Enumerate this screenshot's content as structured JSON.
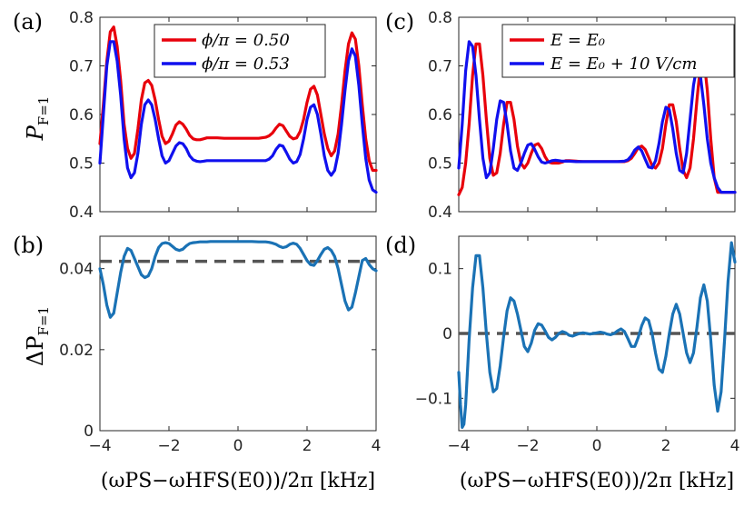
{
  "colors": {
    "red": "#e8000b",
    "blue": "#1010ee",
    "teal": "#1a72b5",
    "dash": "#555555"
  },
  "x_axis_label": "(ωₚₛ−ωₕₒₛ(E₀))/2π [kHz]",
  "x_axis_label_plain": "(ωPS−ωHFS(E0))/2π [kHz]",
  "chart_data": [
    {
      "id": "a",
      "panel_label": "(a)",
      "type": "line",
      "ylabel": "P_{F=1}",
      "ylabel_main": "P",
      "ylabel_sub": "F=1",
      "xlim": [
        -4,
        4
      ],
      "ylim": [
        0.4,
        0.8
      ],
      "yticks": [
        "0.4",
        "0.5",
        "0.6",
        "0.7",
        "0.8"
      ],
      "ytick_values": [
        0.4,
        0.5,
        0.6,
        0.7,
        0.8
      ],
      "xticks": [],
      "legend_position": "top-right",
      "series": [
        {
          "name": "ϕ/π = 0.50",
          "color": "red",
          "x": [
            -4,
            -3.9,
            -3.8,
            -3.7,
            -3.6,
            -3.5,
            -3.4,
            -3.3,
            -3.2,
            -3.1,
            -3.0,
            -2.9,
            -2.8,
            -2.7,
            -2.6,
            -2.5,
            -2.4,
            -2.3,
            -2.2,
            -2.1,
            -2.0,
            -1.9,
            -1.8,
            -1.7,
            -1.6,
            -1.5,
            -1.4,
            -1.3,
            -1.2,
            -1.1,
            -1.0,
            -0.9,
            -0.8,
            -0.6,
            -0.4,
            -0.2,
            0,
            0.2,
            0.4,
            0.6,
            0.8,
            0.9,
            1.0,
            1.1,
            1.2,
            1.3,
            1.4,
            1.5,
            1.6,
            1.7,
            1.8,
            1.9,
            2.0,
            2.1,
            2.2,
            2.3,
            2.4,
            2.5,
            2.6,
            2.7,
            2.8,
            2.9,
            3.0,
            3.1,
            3.2,
            3.3,
            3.4,
            3.5,
            3.6,
            3.7,
            3.8,
            3.9,
            4.0
          ],
          "y": [
            0.54,
            0.62,
            0.71,
            0.77,
            0.78,
            0.74,
            0.67,
            0.58,
            0.53,
            0.51,
            0.52,
            0.57,
            0.63,
            0.665,
            0.67,
            0.66,
            0.63,
            0.59,
            0.555,
            0.54,
            0.545,
            0.56,
            0.578,
            0.585,
            0.58,
            0.57,
            0.557,
            0.55,
            0.548,
            0.548,
            0.55,
            0.552,
            0.552,
            0.552,
            0.551,
            0.551,
            0.551,
            0.551,
            0.551,
            0.551,
            0.553,
            0.556,
            0.562,
            0.572,
            0.58,
            0.577,
            0.566,
            0.555,
            0.55,
            0.552,
            0.565,
            0.59,
            0.625,
            0.652,
            0.658,
            0.64,
            0.6,
            0.56,
            0.53,
            0.515,
            0.525,
            0.56,
            0.62,
            0.69,
            0.745,
            0.768,
            0.755,
            0.7,
            0.62,
            0.55,
            0.505,
            0.485,
            0.485
          ]
        },
        {
          "name": "ϕ/π = 0.53",
          "color": "blue",
          "x": [
            -4,
            -3.9,
            -3.8,
            -3.7,
            -3.6,
            -3.5,
            -3.4,
            -3.3,
            -3.2,
            -3.1,
            -3.0,
            -2.9,
            -2.8,
            -2.7,
            -2.6,
            -2.5,
            -2.4,
            -2.3,
            -2.2,
            -2.1,
            -2.0,
            -1.9,
            -1.8,
            -1.7,
            -1.6,
            -1.5,
            -1.4,
            -1.3,
            -1.2,
            -1.1,
            -1.0,
            -0.9,
            -0.8,
            -0.6,
            -0.4,
            -0.2,
            0,
            0.2,
            0.4,
            0.6,
            0.8,
            0.9,
            1.0,
            1.1,
            1.2,
            1.3,
            1.4,
            1.5,
            1.6,
            1.7,
            1.8,
            1.9,
            2.0,
            2.1,
            2.2,
            2.3,
            2.4,
            2.5,
            2.6,
            2.7,
            2.8,
            2.9,
            3.0,
            3.1,
            3.2,
            3.3,
            3.4,
            3.5,
            3.6,
            3.7,
            3.8,
            3.9,
            4.0
          ],
          "y": [
            0.5,
            0.6,
            0.7,
            0.75,
            0.75,
            0.71,
            0.64,
            0.55,
            0.49,
            0.47,
            0.48,
            0.52,
            0.58,
            0.62,
            0.63,
            0.62,
            0.59,
            0.55,
            0.515,
            0.5,
            0.505,
            0.52,
            0.535,
            0.542,
            0.54,
            0.53,
            0.515,
            0.507,
            0.504,
            0.503,
            0.504,
            0.505,
            0.505,
            0.505,
            0.505,
            0.505,
            0.505,
            0.505,
            0.505,
            0.505,
            0.505,
            0.508,
            0.515,
            0.528,
            0.537,
            0.535,
            0.522,
            0.508,
            0.5,
            0.503,
            0.518,
            0.55,
            0.59,
            0.615,
            0.62,
            0.6,
            0.56,
            0.515,
            0.485,
            0.475,
            0.485,
            0.52,
            0.58,
            0.65,
            0.71,
            0.735,
            0.72,
            0.66,
            0.58,
            0.51,
            0.465,
            0.445,
            0.44
          ]
        }
      ]
    },
    {
      "id": "c",
      "panel_label": "(c)",
      "type": "line",
      "ylabel": "",
      "xlim": [
        -4,
        4
      ],
      "ylim": [
        0.4,
        0.8
      ],
      "yticks": [
        "0.4",
        "0.5",
        "0.6",
        "0.7",
        "0.8"
      ],
      "ytick_values": [
        0.4,
        0.5,
        0.6,
        0.7,
        0.8
      ],
      "xticks": [],
      "legend_position": "top-right",
      "series": [
        {
          "name": "E = E₀",
          "color": "red",
          "x": [
            -4,
            -3.9,
            -3.8,
            -3.7,
            -3.6,
            -3.5,
            -3.4,
            -3.3,
            -3.2,
            -3.1,
            -3.0,
            -2.9,
            -2.8,
            -2.7,
            -2.6,
            -2.5,
            -2.4,
            -2.3,
            -2.2,
            -2.1,
            -2.0,
            -1.9,
            -1.8,
            -1.7,
            -1.6,
            -1.5,
            -1.4,
            -1.3,
            -1.2,
            -1.1,
            -1.0,
            -0.9,
            -0.8,
            -0.6,
            -0.4,
            -0.2,
            0,
            0.2,
            0.4,
            0.6,
            0.8,
            0.9,
            1.0,
            1.1,
            1.2,
            1.3,
            1.4,
            1.5,
            1.6,
            1.7,
            1.8,
            1.9,
            2.0,
            2.1,
            2.2,
            2.3,
            2.4,
            2.5,
            2.6,
            2.7,
            2.8,
            2.9,
            3.0,
            3.1,
            3.2,
            3.3,
            3.4,
            3.5,
            3.6,
            3.7,
            3.8,
            3.9,
            4.0
          ],
          "y": [
            0.435,
            0.45,
            0.5,
            0.58,
            0.68,
            0.745,
            0.745,
            0.68,
            0.59,
            0.51,
            0.475,
            0.48,
            0.52,
            0.58,
            0.625,
            0.625,
            0.59,
            0.535,
            0.5,
            0.49,
            0.5,
            0.52,
            0.537,
            0.54,
            0.53,
            0.513,
            0.502,
            0.5,
            0.5,
            0.5,
            0.502,
            0.505,
            0.505,
            0.504,
            0.503,
            0.503,
            0.503,
            0.503,
            0.503,
            0.503,
            0.503,
            0.505,
            0.51,
            0.52,
            0.532,
            0.535,
            0.528,
            0.512,
            0.495,
            0.49,
            0.5,
            0.53,
            0.58,
            0.62,
            0.62,
            0.585,
            0.53,
            0.485,
            0.47,
            0.49,
            0.55,
            0.63,
            0.7,
            0.715,
            0.65,
            0.55,
            0.47,
            0.44,
            0.44,
            0.44,
            0.44,
            0.44,
            0.44
          ]
        },
        {
          "name": "E = E₀ + 10 V/cm",
          "color": "blue",
          "x": [
            -4,
            -3.9,
            -3.8,
            -3.7,
            -3.6,
            -3.5,
            -3.4,
            -3.3,
            -3.2,
            -3.1,
            -3.0,
            -2.9,
            -2.8,
            -2.7,
            -2.6,
            -2.5,
            -2.4,
            -2.3,
            -2.2,
            -2.1,
            -2.0,
            -1.9,
            -1.8,
            -1.7,
            -1.6,
            -1.5,
            -1.4,
            -1.3,
            -1.2,
            -1.1,
            -1.0,
            -0.9,
            -0.8,
            -0.6,
            -0.4,
            -0.2,
            0,
            0.2,
            0.4,
            0.6,
            0.8,
            0.9,
            1.0,
            1.1,
            1.2,
            1.3,
            1.4,
            1.5,
            1.6,
            1.7,
            1.8,
            1.9,
            2.0,
            2.1,
            2.2,
            2.3,
            2.4,
            2.5,
            2.6,
            2.7,
            2.8,
            2.9,
            3.0,
            3.1,
            3.2,
            3.3,
            3.4,
            3.5,
            3.6,
            3.7,
            3.8,
            3.9,
            4.0
          ],
          "y": [
            0.49,
            0.58,
            0.69,
            0.75,
            0.74,
            0.68,
            0.59,
            0.51,
            0.47,
            0.48,
            0.53,
            0.59,
            0.628,
            0.625,
            0.58,
            0.525,
            0.49,
            0.485,
            0.5,
            0.52,
            0.537,
            0.54,
            0.528,
            0.513,
            0.502,
            0.5,
            0.502,
            0.505,
            0.506,
            0.505,
            0.504,
            0.504,
            0.504,
            0.503,
            0.503,
            0.503,
            0.503,
            0.503,
            0.503,
            0.503,
            0.504,
            0.507,
            0.515,
            0.527,
            0.533,
            0.525,
            0.508,
            0.492,
            0.49,
            0.505,
            0.54,
            0.585,
            0.615,
            0.61,
            0.57,
            0.52,
            0.485,
            0.48,
            0.52,
            0.59,
            0.66,
            0.7,
            0.68,
            0.62,
            0.55,
            0.5,
            0.47,
            0.45,
            0.44,
            0.44,
            0.44,
            0.44,
            0.44
          ]
        }
      ]
    },
    {
      "id": "b",
      "panel_label": "(b)",
      "type": "line",
      "ylabel": "ΔP_{F=1}",
      "ylabel_main": "ΔP",
      "ylabel_sub": "F=1",
      "xlim": [
        -4,
        4
      ],
      "ylim": [
        0,
        0.048
      ],
      "yticks": [
        "0",
        "0.02",
        "0.04"
      ],
      "ytick_values": [
        0,
        0.02,
        0.04
      ],
      "xticks": [
        "−4",
        "−2",
        "0",
        "2",
        "4"
      ],
      "xtick_values": [
        -4,
        -2,
        0,
        2,
        4
      ],
      "hline": 0.0418,
      "series": [
        {
          "name": "",
          "color": "teal",
          "x": [
            -4,
            -3.9,
            -3.8,
            -3.7,
            -3.6,
            -3.5,
            -3.4,
            -3.3,
            -3.2,
            -3.1,
            -3.0,
            -2.9,
            -2.8,
            -2.7,
            -2.6,
            -2.5,
            -2.4,
            -2.3,
            -2.2,
            -2.1,
            -2.0,
            -1.9,
            -1.8,
            -1.7,
            -1.6,
            -1.5,
            -1.4,
            -1.3,
            -1.2,
            -1.1,
            -1.0,
            -0.9,
            -0.8,
            -0.6,
            -0.4,
            -0.2,
            0,
            0.2,
            0.4,
            0.6,
            0.8,
            0.9,
            1.0,
            1.1,
            1.2,
            1.3,
            1.4,
            1.5,
            1.6,
            1.7,
            1.8,
            1.9,
            2.0,
            2.1,
            2.2,
            2.3,
            2.4,
            2.5,
            2.6,
            2.7,
            2.8,
            2.9,
            3.0,
            3.1,
            3.2,
            3.3,
            3.4,
            3.5,
            3.6,
            3.7,
            3.8,
            3.9,
            4.0
          ],
          "y": [
            0.04,
            0.036,
            0.031,
            0.028,
            0.029,
            0.034,
            0.039,
            0.043,
            0.045,
            0.0445,
            0.0425,
            0.0405,
            0.0385,
            0.0378,
            0.0382,
            0.04,
            0.043,
            0.0452,
            0.0462,
            0.0464,
            0.0462,
            0.0455,
            0.0448,
            0.0445,
            0.0448,
            0.0456,
            0.0462,
            0.0464,
            0.0465,
            0.0466,
            0.0466,
            0.0466,
            0.0467,
            0.0467,
            0.0467,
            0.0467,
            0.0467,
            0.0467,
            0.0467,
            0.0466,
            0.0466,
            0.0465,
            0.0463,
            0.046,
            0.0455,
            0.0452,
            0.0454,
            0.046,
            0.0463,
            0.046,
            0.045,
            0.0435,
            0.042,
            0.041,
            0.0408,
            0.042,
            0.0435,
            0.0448,
            0.0452,
            0.0445,
            0.043,
            0.04,
            0.036,
            0.032,
            0.0298,
            0.0305,
            0.034,
            0.038,
            0.042,
            0.0425,
            0.041,
            0.04,
            0.0395
          ]
        }
      ]
    },
    {
      "id": "d",
      "panel_label": "(d)",
      "type": "line",
      "ylabel": "",
      "xlim": [
        -4,
        4
      ],
      "ylim": [
        -0.15,
        0.15
      ],
      "yticks": [
        "−0.1",
        "0",
        "0.1"
      ],
      "ytick_values": [
        -0.1,
        0,
        0.1
      ],
      "xticks": [
        "−4",
        "−2",
        "0",
        "2",
        "4"
      ],
      "xtick_values": [
        -4,
        -2,
        0,
        2,
        4
      ],
      "hline": 0,
      "series": [
        {
          "name": "",
          "color": "teal",
          "x": [
            -4,
            -3.95,
            -3.9,
            -3.85,
            -3.8,
            -3.75,
            -3.7,
            -3.6,
            -3.5,
            -3.4,
            -3.3,
            -3.2,
            -3.1,
            -3.0,
            -2.9,
            -2.8,
            -2.7,
            -2.6,
            -2.5,
            -2.4,
            -2.3,
            -2.2,
            -2.1,
            -2.0,
            -1.9,
            -1.8,
            -1.7,
            -1.6,
            -1.5,
            -1.4,
            -1.3,
            -1.2,
            -1.1,
            -1.0,
            -0.9,
            -0.8,
            -0.7,
            -0.6,
            -0.5,
            -0.4,
            -0.3,
            -0.2,
            -0.1,
            0,
            0.1,
            0.2,
            0.3,
            0.4,
            0.5,
            0.6,
            0.7,
            0.8,
            0.9,
            1.0,
            1.1,
            1.2,
            1.3,
            1.4,
            1.5,
            1.6,
            1.7,
            1.8,
            1.9,
            2.0,
            2.1,
            2.2,
            2.3,
            2.4,
            2.5,
            2.6,
            2.7,
            2.8,
            2.9,
            3.0,
            3.1,
            3.2,
            3.3,
            3.4,
            3.5,
            3.6,
            3.7,
            3.8,
            3.9,
            4.0
          ],
          "y": [
            -0.06,
            -0.11,
            -0.145,
            -0.14,
            -0.11,
            -0.06,
            -0.01,
            0.07,
            0.12,
            0.12,
            0.07,
            0.0,
            -0.06,
            -0.09,
            -0.085,
            -0.05,
            -0.005,
            0.035,
            0.055,
            0.05,
            0.03,
            0.005,
            -0.02,
            -0.028,
            -0.015,
            0.005,
            0.015,
            0.013,
            0.004,
            -0.006,
            -0.01,
            -0.006,
            0.0,
            0.003,
            0.001,
            -0.003,
            -0.004,
            -0.002,
            0.0,
            0.001,
            0.0,
            -0.001,
            0.0,
            0.001,
            0.002,
            0.001,
            -0.001,
            -0.002,
            0.0,
            0.004,
            0.007,
            0.003,
            -0.008,
            -0.02,
            -0.02,
            -0.006,
            0.012,
            0.024,
            0.02,
            0.0,
            -0.03,
            -0.055,
            -0.06,
            -0.035,
            0.0,
            0.03,
            0.045,
            0.03,
            0.0,
            -0.03,
            -0.045,
            -0.03,
            0.01,
            0.055,
            0.075,
            0.05,
            -0.01,
            -0.08,
            -0.12,
            -0.09,
            -0.01,
            0.08,
            0.14,
            0.11
          ]
        }
      ]
    }
  ]
}
